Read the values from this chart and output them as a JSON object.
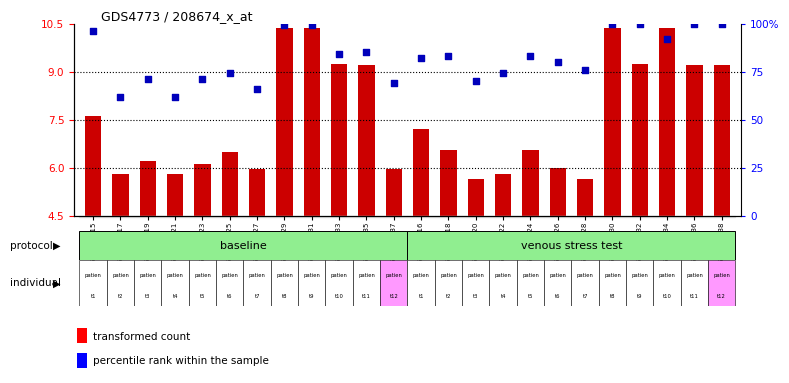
{
  "title": "GDS4773 / 208674_x_at",
  "bar_values": [
    7.6,
    5.8,
    6.2,
    5.8,
    6.1,
    6.5,
    5.95,
    10.35,
    10.35,
    9.25,
    9.2,
    5.95,
    7.2,
    6.55,
    5.65,
    5.8,
    6.55,
    6.0,
    5.65,
    10.35,
    9.25,
    10.35,
    9.2,
    9.2
  ],
  "dot_values_pct": [
    96,
    62,
    71,
    62,
    71,
    74,
    66,
    99,
    99,
    84,
    85,
    69,
    82,
    83,
    70,
    74,
    83,
    80,
    76,
    100,
    100,
    92,
    100,
    100
  ],
  "xlabels": [
    "GSM949415",
    "GSM949417",
    "GSM949419",
    "GSM949421",
    "GSM949423",
    "GSM949425",
    "GSM949427",
    "GSM949429",
    "GSM949431",
    "GSM949433",
    "GSM949435",
    "GSM949437",
    "GSM949416",
    "GSM949418",
    "GSM949420",
    "GSM949422",
    "GSM949424",
    "GSM949426",
    "GSM949428",
    "GSM949430",
    "GSM949432",
    "GSM949434",
    "GSM949436",
    "GSM949438"
  ],
  "individual_labels": [
    "t1",
    "t2",
    "t3",
    "t4",
    "t5",
    "t6",
    "t7",
    "t8",
    "t9",
    "t10",
    "t11",
    "t12",
    "t1",
    "t2",
    "t3",
    "t4",
    "t5",
    "t6",
    "t7",
    "t8",
    "t9",
    "t10",
    "t11",
    "t12"
  ],
  "individual_pinks": [
    false,
    false,
    false,
    false,
    false,
    false,
    false,
    false,
    false,
    false,
    false,
    true,
    false,
    false,
    false,
    false,
    false,
    false,
    false,
    false,
    false,
    false,
    false,
    true
  ],
  "ylim_left": [
    4.5,
    10.5
  ],
  "yticks_left": [
    4.5,
    6.0,
    7.5,
    9.0,
    10.5
  ],
  "yticks_right": [
    0,
    25,
    50,
    75,
    100
  ],
  "ytick_labels_right": [
    "0",
    "25",
    "50",
    "75",
    "100%"
  ],
  "bar_color": "#CC0000",
  "dot_color": "#0000BB",
  "bar_bottom": 4.5,
  "hlines": [
    6.0,
    7.5,
    9.0
  ],
  "individual_bg_color": "#FF99FF",
  "individual_white_color": "#FFFFFF",
  "protocol_bg_color": "#90EE90",
  "baseline_label": "baseline",
  "stress_label": "venous stress test",
  "legend_bar_label": "transformed count",
  "legend_dot_label": "percentile rank within the sample",
  "protocol_label": "protocol",
  "individual_label": "individual"
}
